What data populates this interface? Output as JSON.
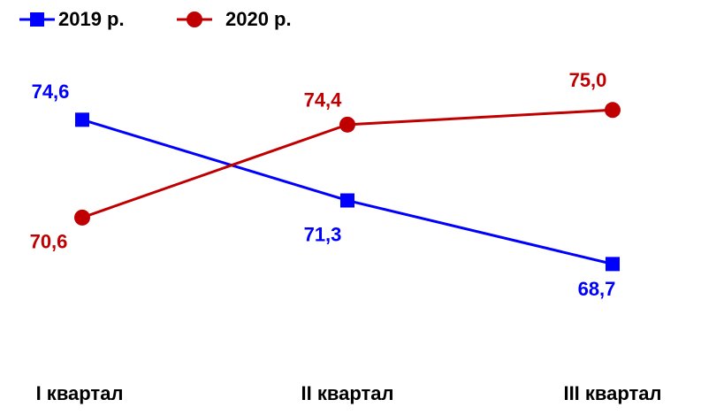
{
  "chart_data": {
    "type": "line",
    "categories": [
      "I квартал",
      "II квартал",
      "III квартал"
    ],
    "series": [
      {
        "name": "2019 р.",
        "color": "#0000ff",
        "marker": "square",
        "values": [
          74.6,
          71.3,
          68.7
        ],
        "value_labels": [
          "74,6",
          "71,3",
          "68,7"
        ]
      },
      {
        "name": "2020 р.",
        "color": "#c00000",
        "marker": "circle",
        "values": [
          70.6,
          74.4,
          75.0
        ],
        "value_labels": [
          "70,6",
          "74,4",
          "75,0"
        ]
      }
    ],
    "ylim": [
      66,
      77
    ],
    "grid": false,
    "legend": "top-left"
  }
}
